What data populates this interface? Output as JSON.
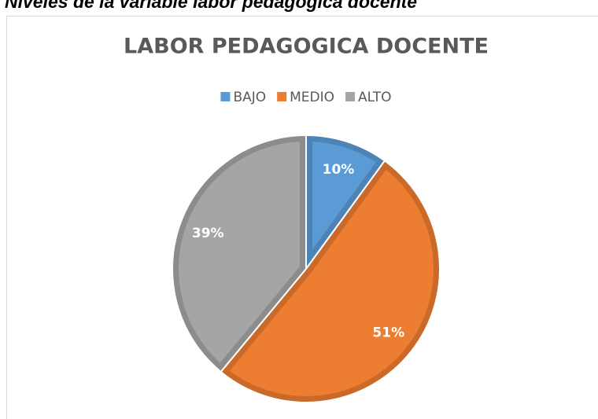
{
  "heading": "Niveles de la variable labor pedagogica docente",
  "chart_data": {
    "type": "pie",
    "title": "LABOR PEDAGOGICA DOCENTE",
    "categories": [
      "BAJO",
      "MEDIO",
      "ALTO"
    ],
    "values": [
      10,
      51,
      39
    ],
    "value_labels": [
      "10%",
      "51%",
      "39%"
    ],
    "colors": [
      "#5b9bd5",
      "#ed7d31",
      "#a5a5a5"
    ],
    "legend": "top"
  }
}
